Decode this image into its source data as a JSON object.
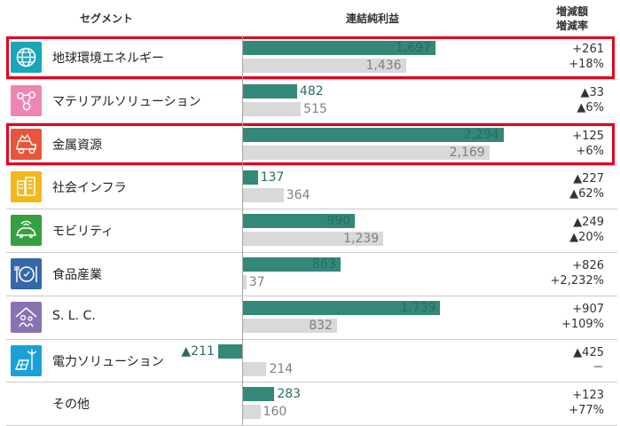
{
  "header": {
    "segment": "セグメント",
    "profit": "連結純利益",
    "change_amount": "増減額",
    "change_rate": "増減率"
  },
  "colors": {
    "current_bar": "#34887a",
    "previous_bar": "#d9d9d9",
    "highlight": "#e3001b"
  },
  "chart_data": {
    "type": "bar",
    "orientation": "horizontal",
    "title": "",
    "categories": [
      "地球環境エネルギー",
      "マテリアルソリューション",
      "金属資源",
      "社会インフラ",
      "モビリティ",
      "食品産業",
      "S. L. C.",
      "電力ソリューション",
      "その他"
    ],
    "series": [
      {
        "values": [
          1697,
          482,
          2294,
          137,
          990,
          863,
          1739,
          -211,
          283
        ]
      },
      {
        "values": [
          1436,
          515,
          2169,
          364,
          1239,
          37,
          832,
          214,
          160
        ]
      }
    ],
    "labels_current": [
      "1,697",
      "482",
      "2,294",
      "137",
      "990",
      "863",
      "1,739",
      "▲211",
      "283"
    ],
    "labels_previous": [
      "1,436",
      "515",
      "2,169",
      "364",
      "1,239",
      "37",
      "832",
      "214",
      "160"
    ],
    "change_amount": [
      "+261",
      "▲33",
      "+125",
      "▲227",
      "▲249",
      "+826",
      "+907",
      "▲425",
      "+123"
    ],
    "change_rate": [
      "+18%",
      "▲6%",
      "+6%",
      "▲62%",
      "▲20%",
      "+2,232%",
      "+109%",
      "－",
      "+77%"
    ],
    "highlighted": [
      "地球環境エネルギー",
      "金属資源"
    ],
    "icons": [
      "globe-icon",
      "molecule-icon",
      "mining-truck-icon",
      "building-icon",
      "connected-car-icon",
      "food-plate-icon",
      "family-home-icon",
      "solar-wind-icon",
      ""
    ],
    "icon_colors": [
      "#1aa6b7",
      "#ee86b3",
      "#e8553b",
      "#f3b81b",
      "#35a03f",
      "#3568a8",
      "#8872b4",
      "#1aa0d9",
      ""
    ]
  }
}
